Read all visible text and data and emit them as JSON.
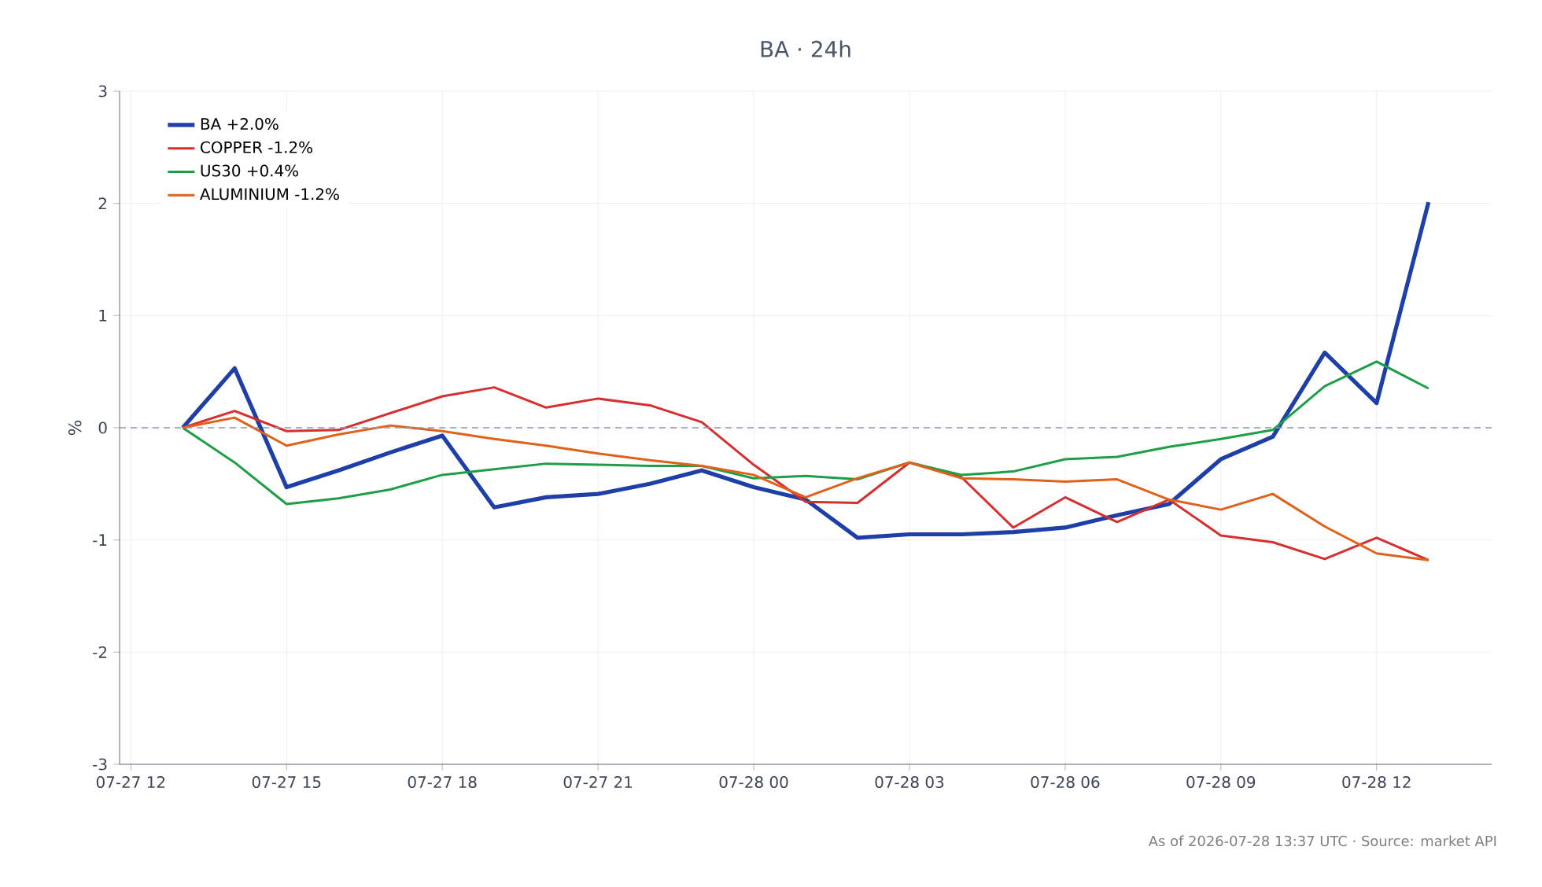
{
  "chart_data": {
    "type": "line",
    "title": "BA · 24h",
    "ylabel": "%",
    "x": [
      "2026-07-27T13:00",
      "2026-07-27T14:00",
      "2026-07-27T15:00",
      "2026-07-27T16:00",
      "2026-07-27T17:00",
      "2026-07-27T18:00",
      "2026-07-27T19:00",
      "2026-07-27T20:00",
      "2026-07-27T21:00",
      "2026-07-27T22:00",
      "2026-07-27T23:00",
      "2026-07-28T00:00",
      "2026-07-28T01:00",
      "2026-07-28T02:00",
      "2026-07-28T03:00",
      "2026-07-28T04:00",
      "2026-07-28T05:00",
      "2026-07-28T06:00",
      "2026-07-28T07:00",
      "2026-07-28T08:00",
      "2026-07-28T09:00",
      "2026-07-28T10:00",
      "2026-07-28T11:00",
      "2026-07-28T12:00",
      "2026-07-28T13:00"
    ],
    "series": [
      {
        "name": "BA +2.0%",
        "color": "#1f3fa8",
        "values": [
          0,
          0.53,
          -0.53,
          -0.38,
          -0.22,
          -0.07,
          -0.71,
          -0.62,
          -0.59,
          -0.5,
          -0.38,
          -0.53,
          -0.64,
          -0.98,
          -0.95,
          -0.95,
          -0.93,
          -0.89,
          -0.78,
          -0.68,
          -0.28,
          -0.08,
          0.67,
          0.22,
          2.01
        ]
      },
      {
        "name": "COPPER -1.2%",
        "color": "#d62f2f",
        "values": [
          0,
          0.15,
          -0.03,
          -0.02,
          0.13,
          0.28,
          0.36,
          0.18,
          0.26,
          0.2,
          0.05,
          -0.33,
          -0.66,
          -0.67,
          -0.31,
          -0.44,
          -0.89,
          -0.62,
          -0.84,
          -0.64,
          -0.96,
          -1.02,
          -1.17,
          -0.98,
          -1.18
        ]
      },
      {
        "name": "US30 +0.4%",
        "color": "#1f9e48",
        "values": [
          0,
          -0.31,
          -0.68,
          -0.63,
          -0.55,
          -0.42,
          -0.37,
          -0.32,
          -0.33,
          -0.34,
          -0.34,
          -0.45,
          -0.43,
          -0.46,
          -0.31,
          -0.42,
          -0.39,
          -0.28,
          -0.26,
          -0.17,
          -0.1,
          -0.02,
          0.37,
          0.59,
          0.35
        ]
      },
      {
        "name": "ALUMINIUM -1.2%",
        "color": "#e0621a",
        "values": [
          0,
          0.09,
          -0.16,
          -0.06,
          0.02,
          -0.03,
          -0.1,
          -0.16,
          -0.23,
          -0.29,
          -0.34,
          -0.42,
          -0.62,
          -0.45,
          -0.31,
          -0.45,
          -0.46,
          -0.48,
          -0.46,
          -0.64,
          -0.73,
          -0.59,
          -0.88,
          -1.12,
          -1.18
        ]
      }
    ],
    "xlim": [
      "2026-07-27T11:47",
      "2026-07-28T14:13"
    ],
    "xticks": [
      {
        "value": "2026-07-27T12:00",
        "label": "07-27 12"
      },
      {
        "value": "2026-07-27T15:00",
        "label": "07-27 15"
      },
      {
        "value": "2026-07-27T18:00",
        "label": "07-27 18"
      },
      {
        "value": "2026-07-27T21:00",
        "label": "07-27 21"
      },
      {
        "value": "2026-07-28T00:00",
        "label": "07-28 00"
      },
      {
        "value": "2026-07-28T03:00",
        "label": "07-28 03"
      },
      {
        "value": "2026-07-28T06:00",
        "label": "07-28 06"
      },
      {
        "value": "2026-07-28T09:00",
        "label": "07-28 09"
      },
      {
        "value": "2026-07-28T12:00",
        "label": "07-28 12"
      }
    ],
    "ylim": [
      -3,
      3
    ],
    "yticks": [
      -3,
      -2,
      -1,
      0,
      1,
      2,
      3
    ],
    "grid": true,
    "legend": "top left",
    "marker": "none",
    "line_style": "solid",
    "ref_lines": [
      {
        "axis": "y",
        "value": 0,
        "color": "#8a9bb5",
        "line_style": "dashed"
      }
    ],
    "annotations": [
      "As of 2026-07-28 13:37 UTC · Source: market API"
    ]
  }
}
